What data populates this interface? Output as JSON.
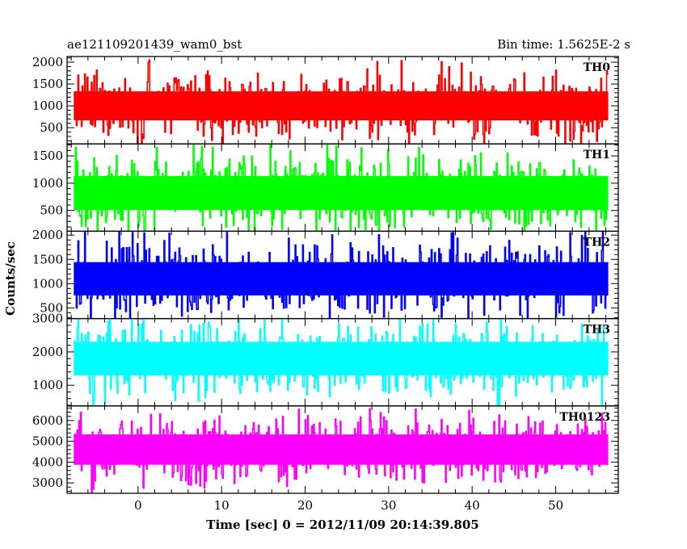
{
  "header": {
    "left_title": "ae121109201439_wam0_bst",
    "right_title": "Bin time: 1.5625E-2 s"
  },
  "chart_data": {
    "type": "line",
    "title": "ae121109201439_wam0_bst",
    "subtitle": "Bin time: 1.5625E-2 s",
    "xlabel": "Time [sec] 0 = 2012/11/09 20:14:39.805",
    "ylabel": "Counts/sec",
    "xlim": [
      -8.5,
      57.5
    ],
    "xticks": [
      0,
      10,
      20,
      30,
      40,
      50
    ],
    "x_start": -7.7,
    "x_end": 56.3,
    "bin_time": 0.015625,
    "grid": false,
    "panels": [
      {
        "name": "TH0",
        "color": "#ff0000",
        "ylim": [
          130,
          2130
        ],
        "yticks": [
          500,
          1000,
          1500,
          2000
        ],
        "mean": 1000,
        "typical_min": 200,
        "typical_max": 1750,
        "peak": 2100
      },
      {
        "name": "TH1",
        "color": "#00ff00",
        "ylim": [
          120,
          1720
        ],
        "yticks": [
          500,
          1000,
          1500
        ],
        "mean": 820,
        "typical_min": 150,
        "typical_max": 1600,
        "peak": 1680
      },
      {
        "name": "TH2",
        "color": "#0000ff",
        "ylim": [
          280,
          2080
        ],
        "yticks": [
          500,
          1000,
          1500,
          2000
        ],
        "mean": 1100,
        "typical_min": 400,
        "typical_max": 2000,
        "peak": 2070
      },
      {
        "name": "TH3",
        "color": "#00ffff",
        "ylim": [
          380,
          3000
        ],
        "yticks": [
          1000,
          2000,
          3000
        ],
        "mean": 1800,
        "typical_min": 550,
        "typical_max": 2900,
        "peak": 3000
      },
      {
        "name": "TH0123",
        "color": "#ff00ff",
        "ylim": [
          2500,
          6700
        ],
        "yticks": [
          3000,
          4000,
          5000,
          6000
        ],
        "mean": 4600,
        "typical_min": 2900,
        "typical_max": 6300,
        "peak": 6600
      }
    ]
  }
}
